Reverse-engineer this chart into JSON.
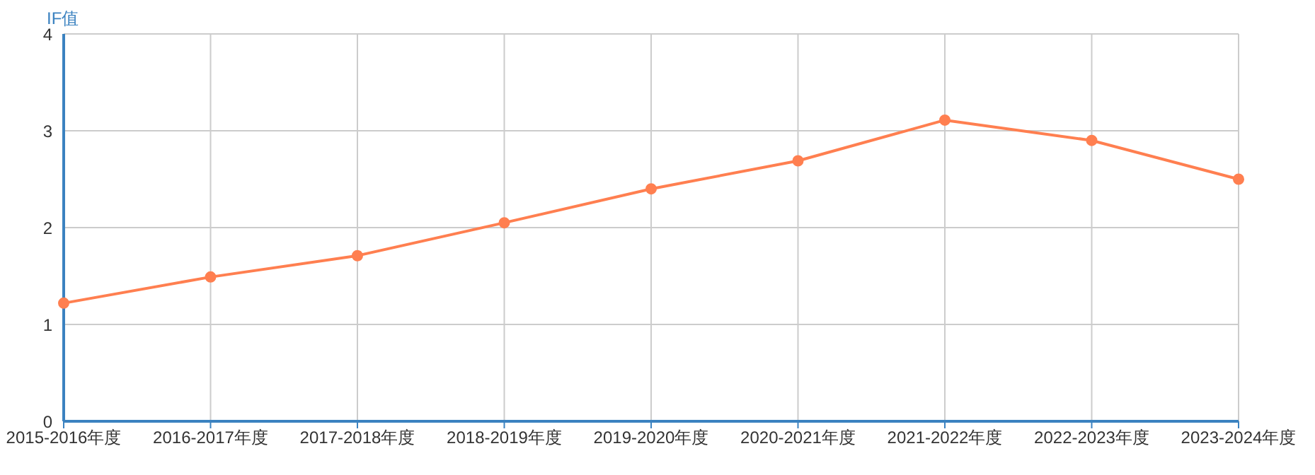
{
  "chart_data": {
    "type": "line",
    "ylabel": "IF值",
    "categories": [
      "2015-2016年度",
      "2016-2017年度",
      "2017-2018年度",
      "2018-2019年度",
      "2019-2020年度",
      "2020-2021年度",
      "2021-2022年度",
      "2022-2023年度",
      "2023-2024年度"
    ],
    "series": [
      {
        "color": "#ff7f50",
        "values": [
          1.22,
          1.49,
          1.71,
          2.05,
          2.4,
          2.69,
          3.11,
          2.9,
          2.5
        ]
      }
    ],
    "ylim": [
      0,
      4
    ],
    "yticks": [
      0,
      1,
      2,
      3,
      4
    ],
    "grid": true,
    "legend": false,
    "marker": "circle",
    "line_style": "solid"
  }
}
